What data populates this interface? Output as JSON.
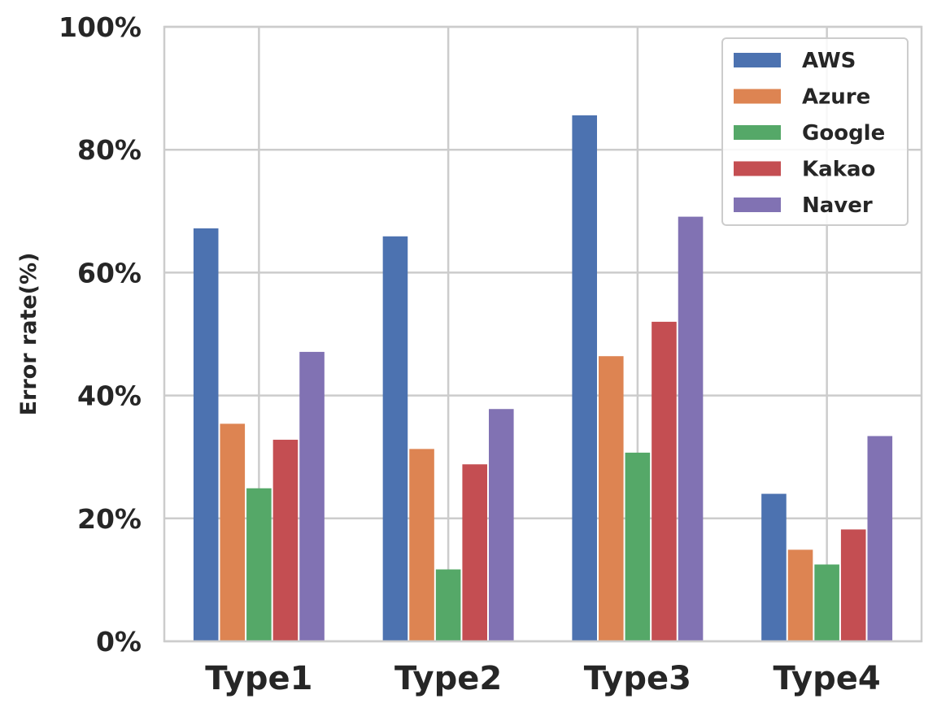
{
  "chart_data": {
    "type": "bar",
    "categories": [
      "Type1",
      "Type2",
      "Type3",
      "Type4"
    ],
    "series": [
      {
        "name": "AWS",
        "color": "#4c72b0",
        "values": [
          67.2,
          65.9,
          85.6,
          24.0
        ]
      },
      {
        "name": "Azure",
        "color": "#dd8452",
        "values": [
          35.4,
          31.3,
          46.4,
          14.9
        ]
      },
      {
        "name": "Google",
        "color": "#55a868",
        "values": [
          24.9,
          11.7,
          30.7,
          12.5
        ]
      },
      {
        "name": "Kakao",
        "color": "#c44e52",
        "values": [
          32.8,
          28.8,
          52.0,
          18.2
        ]
      },
      {
        "name": "Naver",
        "color": "#8172b3",
        "values": [
          47.1,
          37.8,
          69.1,
          33.4
        ]
      }
    ],
    "title": "",
    "xlabel": "",
    "ylabel": "Error rate(%)",
    "ylim": [
      0,
      100
    ],
    "y_ticks": [
      "0%",
      "20%",
      "40%",
      "60%",
      "80%",
      "100%"
    ],
    "y_tick_values": [
      0,
      20,
      40,
      60,
      80,
      100
    ],
    "grid": true,
    "legend_position": "top-right"
  }
}
